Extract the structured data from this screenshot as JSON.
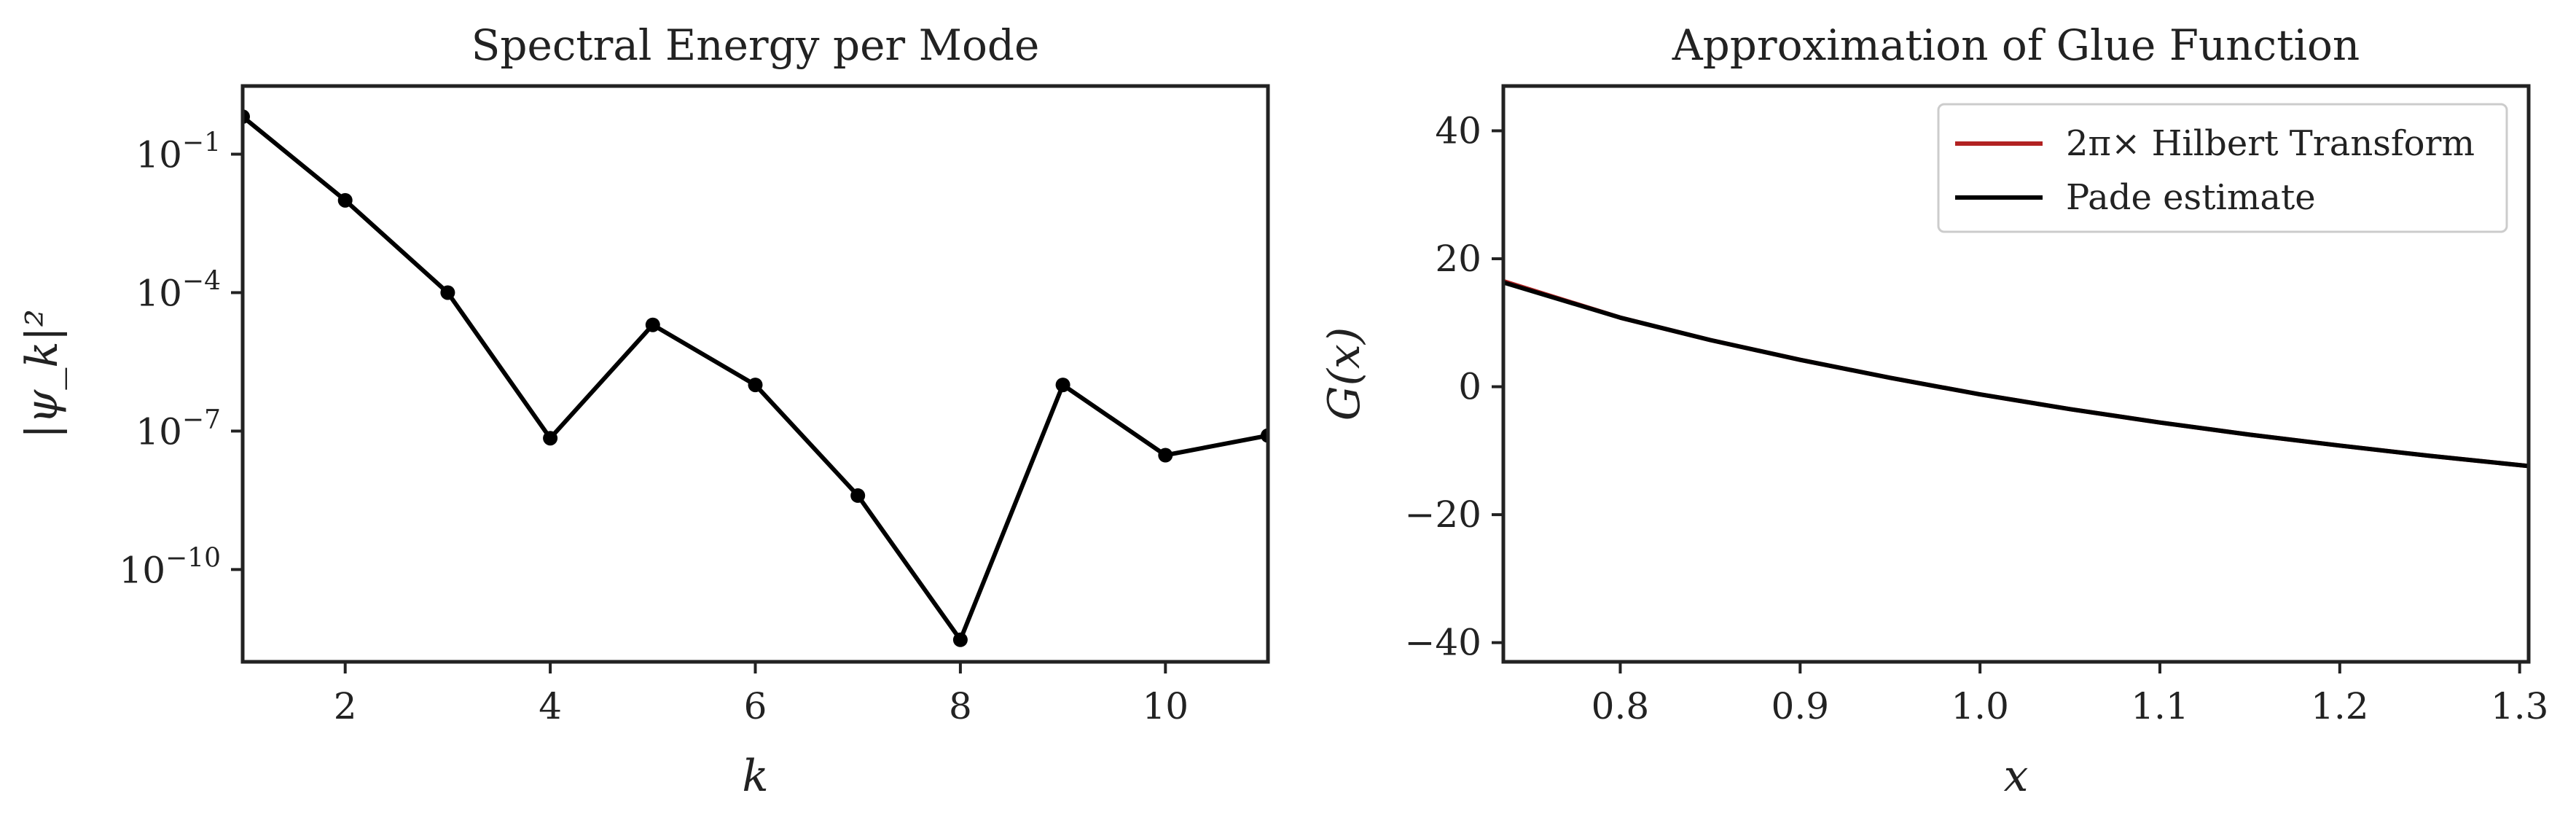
{
  "chart_data": [
    {
      "type": "line",
      "title": "Spectral Energy per Mode",
      "xlabel": "k",
      "ylabel": "|ψ_k|²",
      "yscale": "log",
      "xlim": [
        1,
        11
      ],
      "ylim": [
        1e-12,
        3.0
      ],
      "xticks": [
        2,
        4,
        6,
        8,
        10
      ],
      "yticks": [
        {
          "value": 0.1,
          "base": "10",
          "exp": "−1"
        },
        {
          "value": 0.0001,
          "base": "10",
          "exp": "−4"
        },
        {
          "value": 1e-07,
          "base": "10",
          "exp": "−7"
        },
        {
          "value": 1e-10,
          "base": "10",
          "exp": "−10"
        }
      ],
      "grid": false,
      "series": [
        {
          "color": "#000000",
          "marker": "circle",
          "x": [
            1,
            2,
            3,
            4,
            5,
            6,
            7,
            8,
            9,
            10,
            11
          ],
          "y": [
            0.65,
            0.01,
            0.0001,
            7e-08,
            2e-05,
            1e-06,
            4e-09,
            3e-12,
            1e-06,
            3e-08,
            8e-08
          ]
        }
      ]
    },
    {
      "type": "line",
      "title": "Approximation of Glue Function",
      "xlabel": "x",
      "ylabel": "G(x)",
      "xlim": [
        0.735,
        1.305
      ],
      "ylim": [
        -43,
        47
      ],
      "xticks": [
        0.8,
        0.9,
        1.0,
        1.1,
        1.2,
        1.3
      ],
      "xtick_labels": [
        "0.8",
        "0.9",
        "1.0",
        "1.1",
        "1.2",
        "1.3"
      ],
      "yticks": [
        -40,
        -20,
        0,
        20,
        40
      ],
      "ytick_labels": [
        "−40",
        "−20",
        "0",
        "20",
        "40"
      ],
      "grid": false,
      "legend_position": "top-right",
      "series": [
        {
          "name": "2π× Hilbert Transform",
          "color": "#b22222",
          "x": [
            0.735,
            0.8,
            0.85,
            0.9,
            0.95,
            1.0,
            1.05,
            1.1,
            1.15,
            1.2,
            1.25,
            1.305
          ],
          "y": [
            16.5,
            10.8,
            7.3,
            4.2,
            1.4,
            -1.2,
            -3.5,
            -5.6,
            -7.5,
            -9.2,
            -10.8,
            -12.4
          ]
        },
        {
          "name": "Pade estimate",
          "color": "#000000",
          "x": [
            0.735,
            0.8,
            0.85,
            0.9,
            0.95,
            1.0,
            1.05,
            1.1,
            1.15,
            1.2,
            1.25,
            1.305
          ],
          "y": [
            16.3,
            10.8,
            7.3,
            4.2,
            1.4,
            -1.2,
            -3.5,
            -5.6,
            -7.5,
            -9.2,
            -10.8,
            -12.4
          ]
        }
      ]
    }
  ]
}
